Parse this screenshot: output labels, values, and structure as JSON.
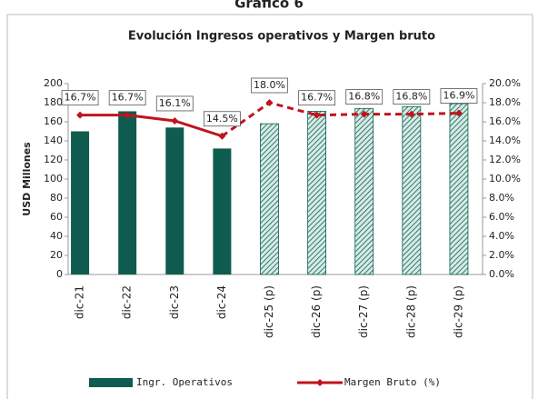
{
  "chart_data": {
    "type": "bar_line",
    "heading": "Gráfico 6",
    "title": "Evolución Ingresos operativos y Margen bruto",
    "y_label": "USD Millones",
    "categories": [
      "dic-21",
      "dic-22",
      "dic-23",
      "dic-24",
      "dic-25 (p)",
      "dic-26 (p)",
      "dic-27 (p)",
      "dic-28 (p)",
      "dic-29 (p)"
    ],
    "series": [
      {
        "name": "Ingr. Operativos",
        "color": "#0d5c4f",
        "values": [
          150,
          171,
          154,
          132,
          158,
          171,
          174,
          176,
          179
        ],
        "hatched": [
          false,
          false,
          false,
          false,
          true,
          true,
          true,
          true,
          true
        ]
      },
      {
        "name": "Margen Bruto (%)",
        "color": "#c0141c",
        "axis": "y2",
        "values": [
          16.7,
          16.7,
          16.1,
          14.5,
          18.0,
          16.7,
          16.8,
          16.8,
          16.9
        ],
        "value_labels": [
          "16.7%",
          "16.7%",
          "16.1%",
          "14.5%",
          "18.0%",
          "16.7%",
          "16.8%",
          "16.8%",
          "16.9%"
        ],
        "dashed": [
          false,
          false,
          false,
          false,
          true,
          true,
          true,
          true,
          true
        ]
      }
    ],
    "ylim": [
      0,
      200
    ],
    "yticks": [
      0,
      20,
      40,
      60,
      80,
      100,
      120,
      140,
      160,
      180,
      200
    ],
    "y2lim": [
      0,
      20
    ],
    "y2ticks": [
      {
        "value": 0,
        "label": "0.0%"
      },
      {
        "value": 2,
        "label": "2.0%"
      },
      {
        "value": 4,
        "label": "4.0%"
      },
      {
        "value": 6,
        "label": "6.0%"
      },
      {
        "value": 8,
        "label": "8.0%"
      },
      {
        "value": 10,
        "label": "10.0%"
      },
      {
        "value": 12,
        "label": "12.0%"
      },
      {
        "value": 14,
        "label": "14.0%"
      },
      {
        "value": 16,
        "label": "16.0%"
      },
      {
        "value": 18,
        "label": "18.0%"
      },
      {
        "value": 20,
        "label": "20.0%"
      }
    ],
    "legend": "bottom"
  }
}
